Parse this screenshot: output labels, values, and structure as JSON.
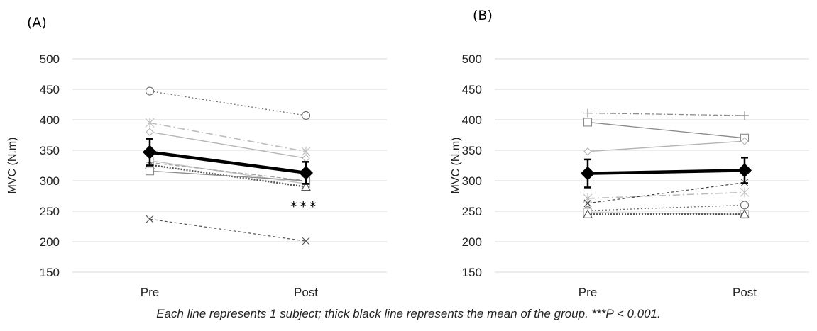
{
  "caption": "Each line represents 1 subject; thick black line represents the mean of the group.  ***P < 0.001.",
  "chart_data": [
    {
      "type": "line",
      "panel": "(A)",
      "ylabel": "MVC (N.m)",
      "categories": [
        "Pre",
        "Post"
      ],
      "ylim": [
        150,
        500
      ],
      "yticks": [
        150,
        200,
        250,
        300,
        350,
        400,
        450,
        500
      ],
      "grid": true,
      "annotation": "***",
      "mean": {
        "values": [
          347,
          313
        ],
        "err": [
          22,
          18
        ]
      },
      "subjects": [
        {
          "values": [
            447,
            407
          ],
          "marker": "circle",
          "color": "#6e6e6e",
          "dash": "2,3",
          "width": 1.3
        },
        {
          "values": [
            395,
            348
          ],
          "marker": "star",
          "color": "#bdbdbd",
          "dash": "10,4,2,4",
          "width": 1.6
        },
        {
          "values": [
            380,
            337
          ],
          "marker": "diamond",
          "color": "#b4b4b4",
          "dash": "",
          "width": 1.4
        },
        {
          "values": [
            333,
            295
          ],
          "marker": "square",
          "color": "#c4c4c4",
          "dash": "",
          "width": 1.4
        },
        {
          "values": [
            330,
            300
          ],
          "marker": "plus",
          "color": "#a0a0a0",
          "dash": "6,3",
          "width": 1.2
        },
        {
          "values": [
            326,
            290
          ],
          "marker": "triangle",
          "color": "#555555",
          "dash": "2,2",
          "width": 2.4
        },
        {
          "values": [
            316,
            300
          ],
          "marker": "square",
          "color": "#8a8a8a",
          "dash": "",
          "width": 1.3
        },
        {
          "values": [
            237,
            201
          ],
          "marker": "x",
          "color": "#555555",
          "dash": "4,3",
          "width": 1.2
        }
      ]
    },
    {
      "type": "line",
      "panel": "(B)",
      "ylabel": "MVC (N.m)",
      "categories": [
        "Pre",
        "Post"
      ],
      "ylim": [
        150,
        500
      ],
      "yticks": [
        150,
        200,
        250,
        300,
        350,
        400,
        450,
        500
      ],
      "grid": true,
      "annotation": "",
      "mean": {
        "values": [
          312,
          317
        ],
        "err": [
          23,
          21
        ]
      },
      "subjects": [
        {
          "values": [
            411,
            407
          ],
          "marker": "plus",
          "color": "#8a8a8a",
          "dash": "8,3,2,3",
          "width": 1.3
        },
        {
          "values": [
            396,
            370
          ],
          "marker": "square",
          "color": "#8a8a8a",
          "dash": "",
          "width": 1.3
        },
        {
          "values": [
            348,
            365
          ],
          "marker": "diamond",
          "color": "#b4b4b4",
          "dash": "",
          "width": 1.4
        },
        {
          "values": [
            271,
            281
          ],
          "marker": "star",
          "color": "#bdbdbd",
          "dash": "10,4,2,4",
          "width": 1.6
        },
        {
          "values": [
            263,
            297
          ],
          "marker": "x",
          "color": "#444444",
          "dash": "4,3",
          "width": 1.2
        },
        {
          "values": [
            251,
            260
          ],
          "marker": "circle",
          "color": "#6e6e6e",
          "dash": "2,3",
          "width": 1.3
        },
        {
          "values": [
            248,
            245
          ],
          "marker": "square",
          "color": "#c4c4c4",
          "dash": "",
          "width": 1.3
        },
        {
          "values": [
            245,
            245
          ],
          "marker": "triangle",
          "color": "#555555",
          "dash": "2,2",
          "width": 2.4
        }
      ]
    }
  ]
}
